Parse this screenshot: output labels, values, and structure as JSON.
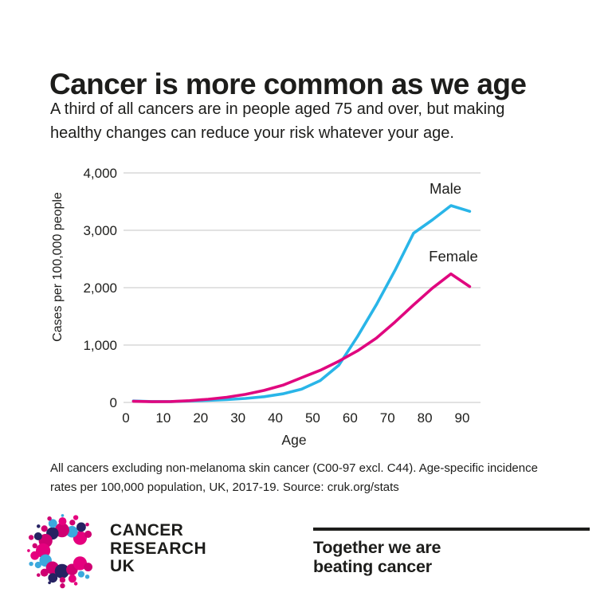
{
  "page": {
    "title": "Cancer is more common as we age",
    "subtitle_lines": [
      "A third of all cancers are in people aged 75 and over, but making",
      "healthy changes can reduce your risk whatever your age."
    ],
    "footnote_lines": [
      "All cancers excluding non-melanoma skin cancer (C00-97 excl. C44). Age-specific incidence",
      "rates per 100,000 population, UK, 2017-19. Source: cruk.org/stats"
    ]
  },
  "chart_data": {
    "type": "line",
    "title": "",
    "xlabel": "Age",
    "ylabel": "Cases per 100,000 people",
    "xlim": [
      0,
      95
    ],
    "ylim": [
      0,
      4000
    ],
    "grid": "horizontal-gridlines-only",
    "legend": "inline-labels-near-lines",
    "x_ticks": [
      0,
      10,
      20,
      30,
      40,
      50,
      60,
      70,
      80,
      90
    ],
    "y_ticks": [
      0,
      1000,
      2000,
      3000,
      4000
    ],
    "y_tick_labels": [
      "0",
      "1,000",
      "2,000",
      "3,000",
      "4,000"
    ],
    "x": [
      2,
      7,
      12,
      17,
      22,
      27,
      32,
      37,
      42,
      47,
      52,
      57,
      62,
      67,
      72,
      77,
      82,
      87,
      92
    ],
    "series": [
      {
        "name": "Male",
        "color": "#29b5e8",
        "values": [
          25,
          15,
          15,
          25,
          35,
          50,
          70,
          100,
          150,
          230,
          380,
          650,
          1150,
          1700,
          2300,
          2950,
          3180,
          3430,
          3330
        ]
      },
      {
        "name": "Female",
        "color": "#e0077f",
        "values": [
          20,
          12,
          15,
          30,
          55,
          90,
          140,
          210,
          300,
          430,
          560,
          720,
          900,
          1120,
          1400,
          1700,
          1990,
          2240,
          2020
        ]
      }
    ]
  },
  "footer": {
    "logo_text_lines": [
      "CANCER",
      "RESEARCH",
      "UK"
    ],
    "tagline_lines": [
      "Together we are",
      "beating cancer"
    ]
  },
  "colors": {
    "male_line": "#29b5e8",
    "female_line": "#e0077f",
    "gridline": "#d9d9d9",
    "text": "#1d1d1b",
    "logo_pink": "#e5007e",
    "logo_magenta": "#cf0072",
    "logo_navy": "#2e2a68",
    "logo_dark_navy": "#262262",
    "logo_blue": "#3ba9dd"
  }
}
